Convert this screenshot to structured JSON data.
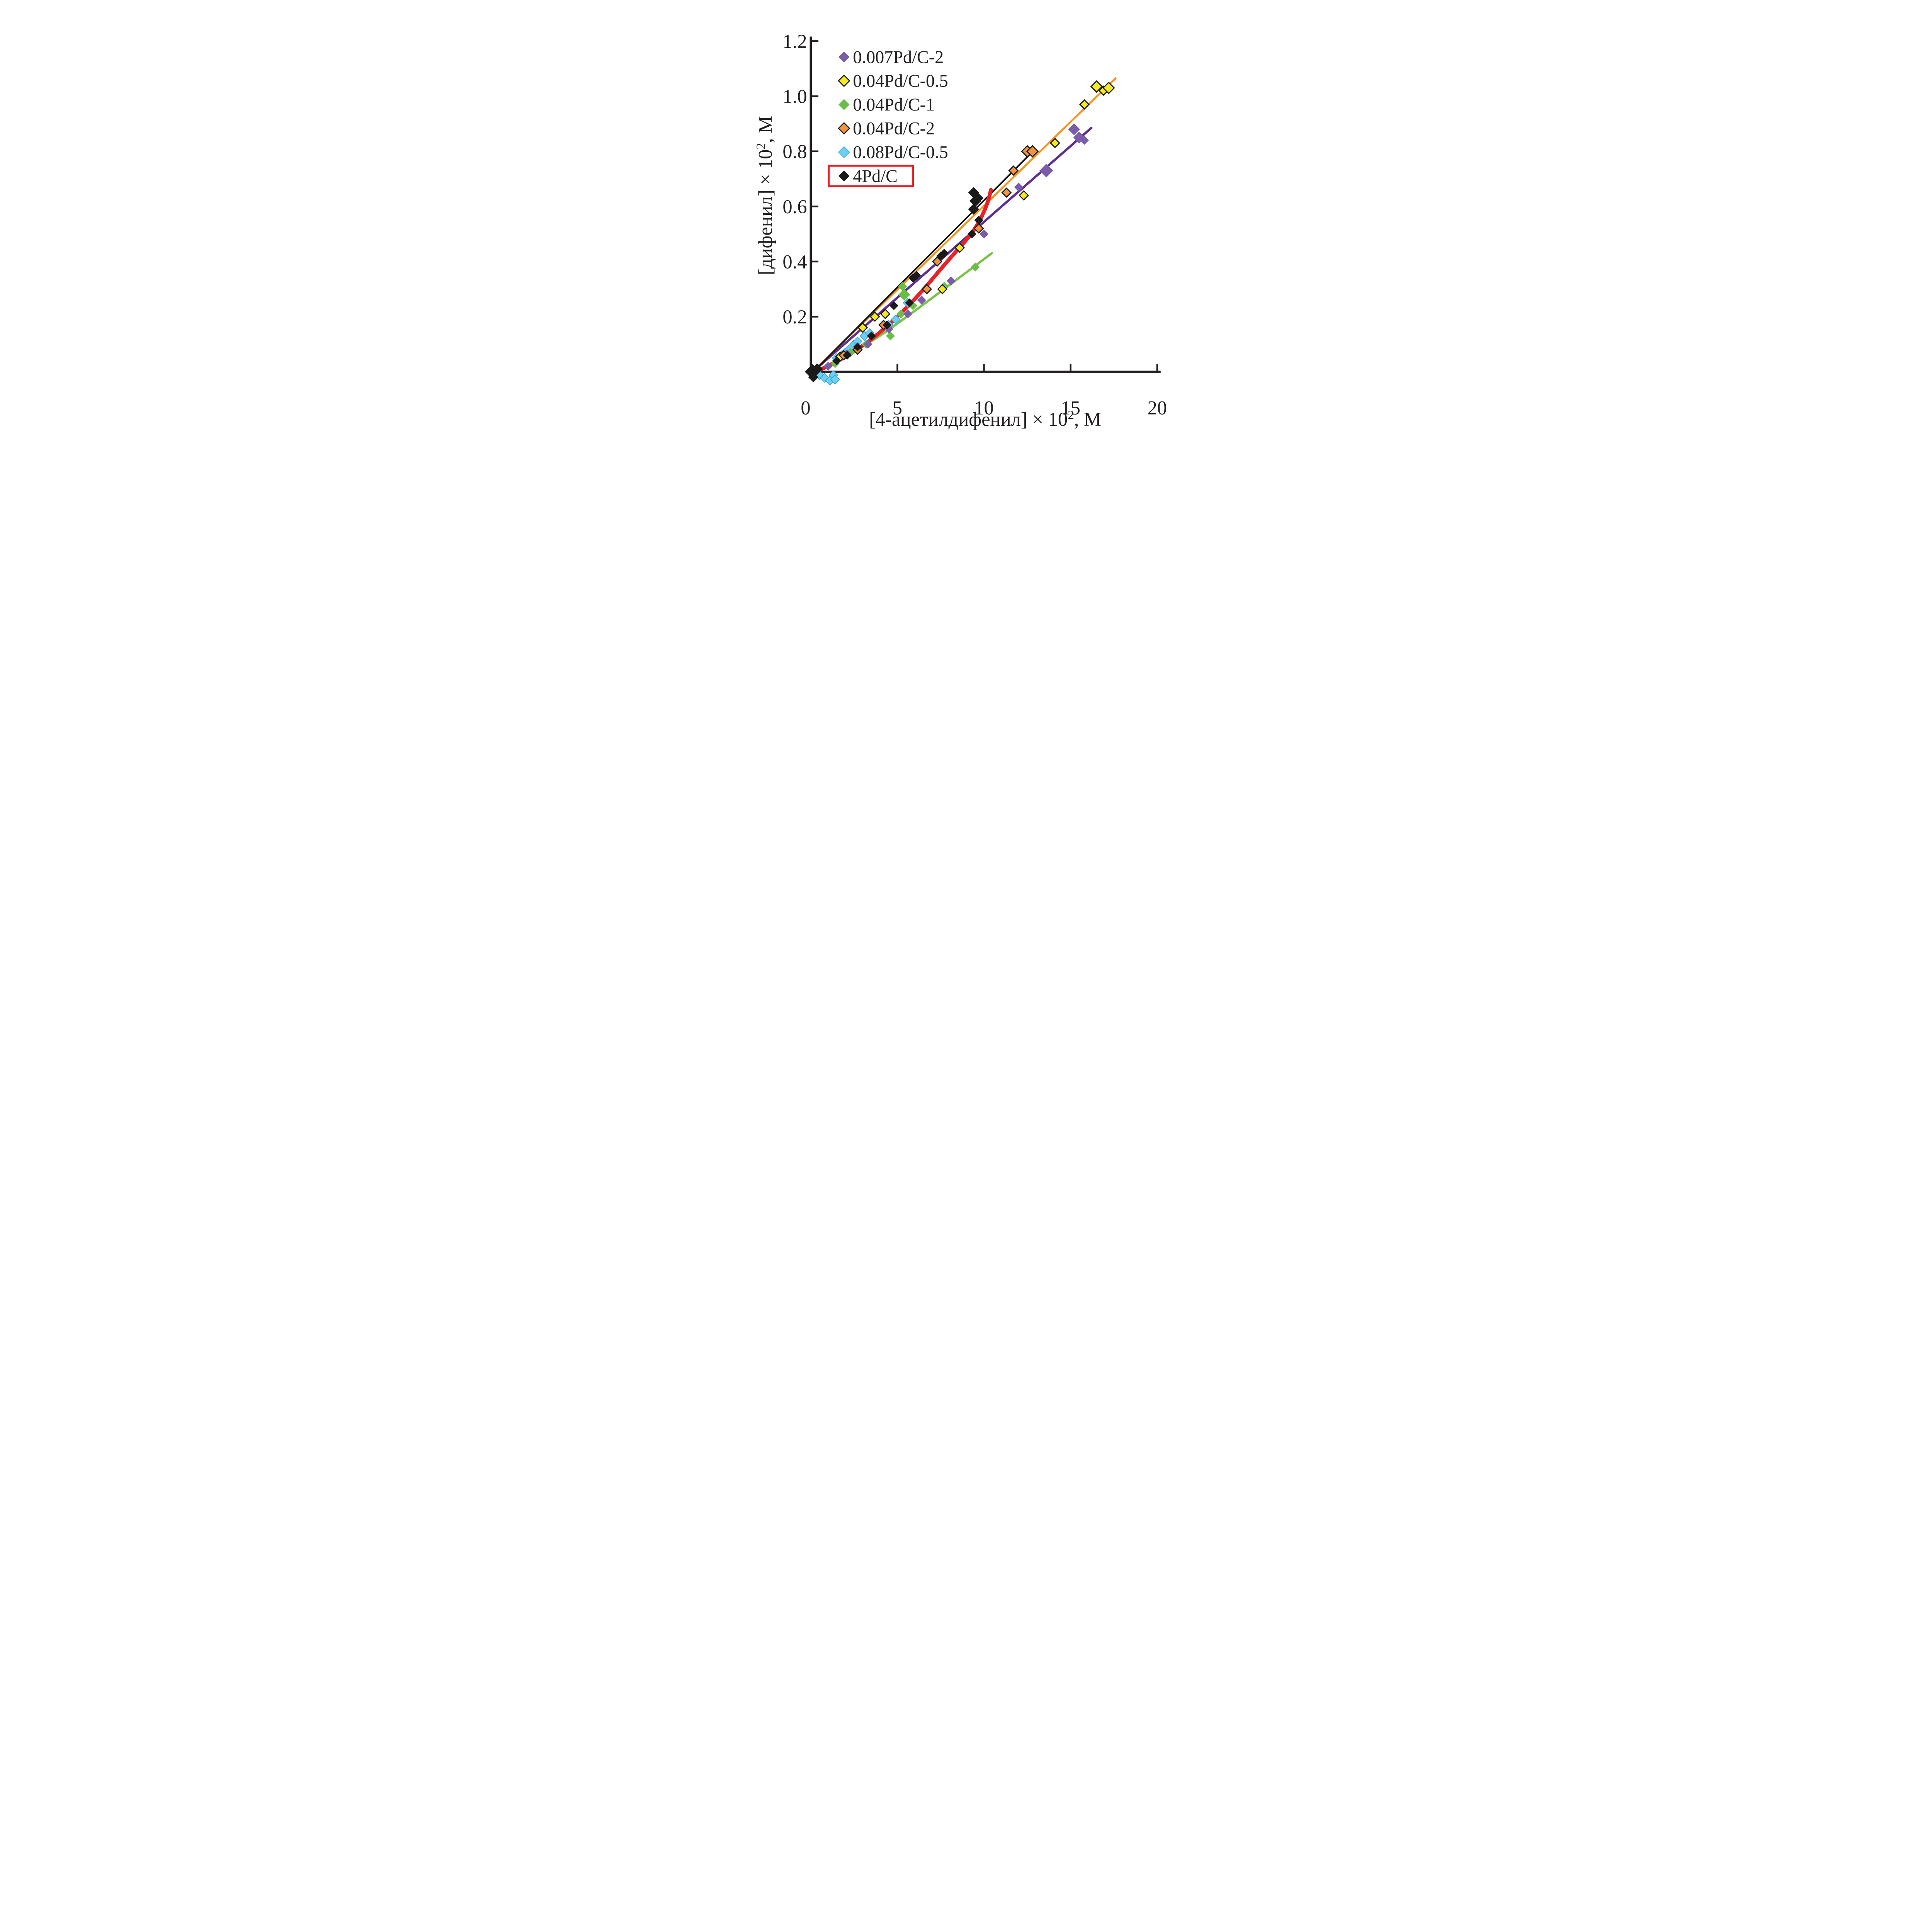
{
  "colors": {
    "background": "#ffffff",
    "axis": "#231F20",
    "legend_highlight_box": "#EC1C24"
  },
  "legend": {
    "items": [
      {
        "label": "0.007Pd/C-2",
        "series": "0.007Pd/C-2",
        "boxed": false
      },
      {
        "label": "0.04Pd/C-0.5",
        "series": "0.04Pd/C-0.5",
        "boxed": false
      },
      {
        "label": "0.04Pd/C-1",
        "series": "0.04Pd/C-1",
        "boxed": false
      },
      {
        "label": "0.04Pd/C-2",
        "series": "0.04Pd/C-2",
        "boxed": false
      },
      {
        "label": "0.08Pd/C-0.5",
        "series": "0.08Pd/C-0.5",
        "boxed": false
      },
      {
        "label": "4Pd/C",
        "series": "4Pd/C",
        "boxed": true
      }
    ]
  },
  "chart_data": {
    "type": "scatter",
    "title": "",
    "xlabel": "[4-ацетилдифенил] × 10², М",
    "ylabel": "[дифенил] × 10², М",
    "xlabel_parts": {
      "pre": "[4-ацетилдифенил] × 10",
      "sup": "2",
      "post": ", М"
    },
    "ylabel_parts": {
      "pre": "[дифенил] × 10",
      "sup": "2",
      "post": ", М"
    },
    "xlim": [
      0,
      20.3
    ],
    "ylim": [
      -0.05,
      1.25
    ],
    "grid": false,
    "legend_position": "upper-left-inside",
    "x_ticks": [
      {
        "value": 0,
        "label": "0"
      },
      {
        "value": 5,
        "label": "5"
      },
      {
        "value": 10,
        "label": "10"
      },
      {
        "value": 15,
        "label": "15"
      },
      {
        "value": 20,
        "label": "20"
      }
    ],
    "y_ticks": [
      {
        "value": 0.2,
        "label": "0.2"
      },
      {
        "value": 0.4,
        "label": "0.4"
      },
      {
        "value": 0.6,
        "label": "0.6"
      },
      {
        "value": 0.8,
        "label": "0.8"
      },
      {
        "value": 1.0,
        "label": "1.0"
      },
      {
        "value": 1.2,
        "label": "1.2"
      }
    ],
    "series": [
      {
        "name": "0.08Pd/C-0.5",
        "marker": "diamond",
        "marker_color": "#6DCFF6",
        "marker_stroke": "#35A7D7",
        "marker_stroke_width": 1.5,
        "points": [
          [
            0.5,
            -0.012
          ],
          [
            0.8,
            -0.022
          ],
          [
            1.1,
            -0.032
          ],
          [
            1.3,
            -0.012
          ],
          [
            1.4,
            -0.028
          ],
          [
            1.5,
            0.05
          ],
          [
            1.8,
            0.06
          ],
          [
            2.0,
            0.07
          ],
          [
            2.2,
            0.08
          ],
          [
            2.5,
            0.1
          ],
          [
            2.7,
            0.11
          ],
          [
            3.1,
            0.13
          ],
          [
            3.4,
            0.14
          ],
          [
            4.5,
            0.17
          ],
          [
            4.9,
            0.19
          ],
          [
            5.6,
            0.25
          ]
        ]
      },
      {
        "name": "0.04Pd/C-1",
        "marker": "diamond",
        "marker_color": "#68BE47",
        "marker_stroke": "none",
        "marker_stroke_width": 0,
        "fit_line": {
          "color": "#7CC24B",
          "width": 5.5,
          "points": [
            [
              0.2,
              0.0
            ],
            [
              3.0,
              0.085
            ],
            [
              6.0,
              0.22
            ],
            [
              10.45,
              0.43
            ]
          ]
        },
        "points": [
          [
            1.4,
            0.03
          ],
          [
            2.3,
            0.07
          ],
          [
            3.2,
            0.1
          ],
          [
            4.6,
            0.13
          ],
          [
            5.2,
            0.21
          ],
          [
            5.3,
            0.31
          ],
          [
            5.4,
            0.28,
            14
          ],
          [
            5.9,
            0.24
          ],
          [
            7.7,
            0.31
          ],
          [
            9.5,
            0.38
          ]
        ]
      },
      {
        "name": "0.007Pd/C-2",
        "marker": "diamond",
        "marker_color": "#7A5DA8",
        "marker_stroke": "none",
        "marker_stroke_width": 0,
        "fit_line": {
          "color": "#5F2E91",
          "width": 5.5,
          "points": [
            [
              0.2,
              0.005
            ],
            [
              16.2,
              0.885
            ]
          ]
        },
        "points": [
          [
            1.0,
            0.02
          ],
          [
            2.1,
            0.065
          ],
          [
            3.3,
            0.1
          ],
          [
            4.5,
            0.155
          ],
          [
            5.6,
            0.21
          ],
          [
            6.4,
            0.26
          ],
          [
            8.1,
            0.33
          ],
          [
            10.0,
            0.5
          ],
          [
            12.0,
            0.67
          ],
          [
            13.6,
            0.73,
            16
          ],
          [
            15.2,
            0.88,
            14
          ],
          [
            15.5,
            0.85,
            14
          ],
          [
            15.8,
            0.84
          ]
        ]
      },
      {
        "name": "0.04Pd/C-0.5",
        "marker": "diamond",
        "marker_color": "#F4EA1F",
        "marker_stroke": "#1A1A1A",
        "marker_stroke_width": 2.5,
        "fit_line": {
          "color": "#F7941D",
          "width": 4.5,
          "points": [
            [
              0.1,
              0.0
            ],
            [
              17.6,
              1.065
            ]
          ]
        },
        "points": [
          [
            1.7,
            0.055
          ],
          [
            3.0,
            0.16
          ],
          [
            3.7,
            0.2
          ],
          [
            4.3,
            0.21
          ],
          [
            7.6,
            0.3
          ],
          [
            8.6,
            0.45
          ],
          [
            12.3,
            0.64
          ],
          [
            14.1,
            0.83
          ],
          [
            15.8,
            0.97
          ],
          [
            16.5,
            1.035,
            13
          ],
          [
            16.9,
            1.02
          ],
          [
            17.2,
            1.03,
            13
          ]
        ]
      },
      {
        "name": "0.04Pd/C-2",
        "marker": "diamond",
        "marker_color": "#F0953F",
        "marker_stroke": "#1A1A1A",
        "marker_stroke_width": 2.5,
        "fit_line": {
          "color": "#111111",
          "width": 3.8,
          "points": [
            [
              0.15,
              0.0
            ],
            [
              12.9,
              0.805
            ]
          ]
        },
        "points": [
          [
            0.4,
            0.01
          ],
          [
            1.9,
            0.06
          ],
          [
            2.7,
            0.08
          ],
          [
            4.2,
            0.17
          ],
          [
            6.7,
            0.3
          ],
          [
            7.3,
            0.4
          ],
          [
            9.7,
            0.52
          ],
          [
            11.3,
            0.65
          ],
          [
            11.7,
            0.73
          ],
          [
            12.5,
            0.8,
            13
          ],
          [
            12.8,
            0.8,
            13
          ]
        ]
      },
      {
        "name": "4Pd/C",
        "marker": "diamond",
        "marker_color": "#1A1A1A",
        "marker_stroke": "none",
        "marker_stroke_width": 0,
        "fit_line": {
          "color": "#E92128",
          "width": 9,
          "points": [
            [
              0.3,
              0.0
            ],
            [
              2.0,
              0.05
            ],
            [
              4.0,
              0.14
            ],
            [
              6.0,
              0.26
            ],
            [
              8.0,
              0.41
            ],
            [
              9.3,
              0.5
            ],
            [
              9.9,
              0.565
            ],
            [
              10.25,
              0.62
            ],
            [
              10.4,
              0.66
            ]
          ]
        },
        "points": [
          [
            0.1,
            0.0,
            18
          ],
          [
            0.35,
            0.01,
            13
          ],
          [
            0.15,
            -0.02,
            12
          ],
          [
            1.5,
            0.04
          ],
          [
            2.1,
            0.06
          ],
          [
            2.7,
            0.09
          ],
          [
            3.5,
            0.13
          ],
          [
            4.4,
            0.17
          ],
          [
            4.8,
            0.24
          ],
          [
            5.7,
            0.25
          ],
          [
            5.9,
            0.34
          ],
          [
            6.1,
            0.35
          ],
          [
            7.5,
            0.42
          ],
          [
            7.7,
            0.43
          ],
          [
            9.3,
            0.5
          ],
          [
            9.7,
            0.55
          ],
          [
            9.4,
            0.59,
            13
          ],
          [
            9.5,
            0.62,
            14
          ],
          [
            9.4,
            0.65,
            13
          ],
          [
            9.65,
            0.63,
            13
          ]
        ]
      }
    ]
  }
}
